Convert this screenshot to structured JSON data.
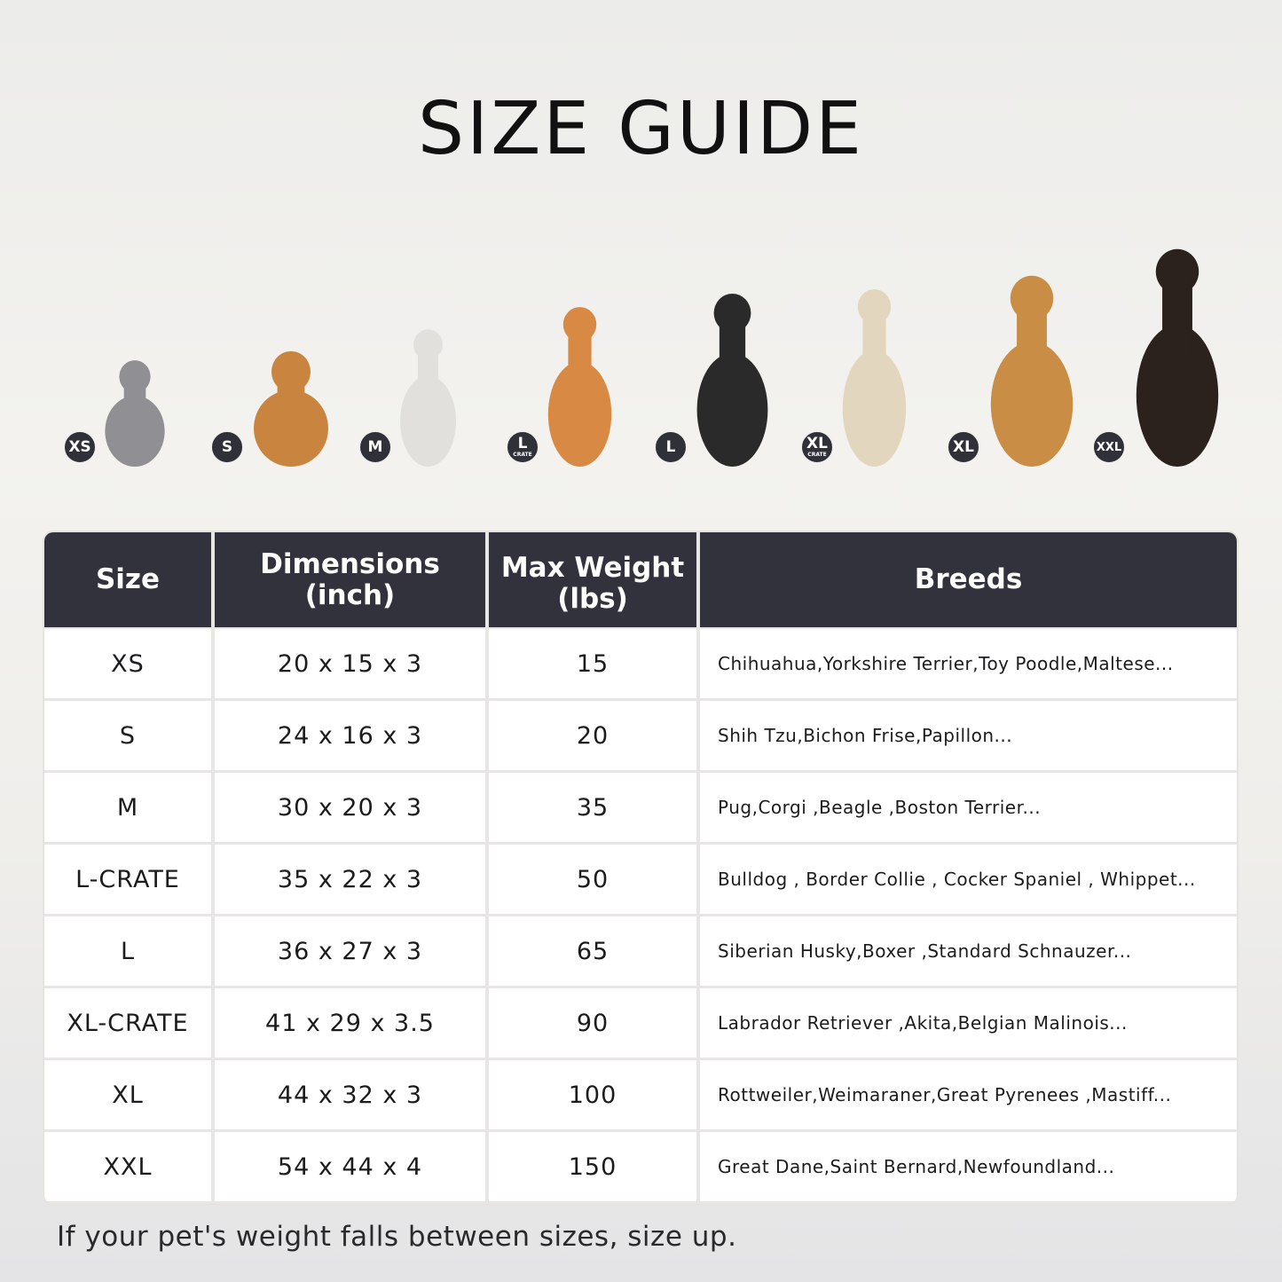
{
  "title": "SIZE GUIDE",
  "pets": [
    {
      "badge": "XS",
      "sub": "",
      "animal": "british-shorthair-cat",
      "color": "#8f8f94"
    },
    {
      "badge": "S",
      "sub": "",
      "animal": "pomeranian",
      "color": "#c9853f"
    },
    {
      "badge": "M",
      "sub": "",
      "animal": "french-bulldog",
      "color": "#e2e0dc"
    },
    {
      "badge": "L",
      "sub": "CRATE",
      "animal": "shiba-inu",
      "color": "#d88a45"
    },
    {
      "badge": "L",
      "sub": "",
      "animal": "border-collie",
      "color": "#2a2a2a"
    },
    {
      "badge": "XL",
      "sub": "CRATE",
      "animal": "labrador-retriever",
      "color": "#e3d6bf"
    },
    {
      "badge": "XL",
      "sub": "",
      "animal": "golden-retriever",
      "color": "#c98d45"
    },
    {
      "badge": "XXL",
      "sub": "",
      "animal": "doberman",
      "color": "#2b211d"
    }
  ],
  "table": {
    "headers": {
      "size": "Size",
      "dimensions": [
        "Dimensions",
        "(inch)"
      ],
      "weight": [
        "Max Weight",
        "(lbs)"
      ],
      "breeds": "Breeds"
    },
    "rows": [
      {
        "size": "XS",
        "dimensions": "20 x 15 x 3",
        "weight": "15",
        "breeds": "Chihuahua,Yorkshire Terrier,Toy Poodle,Maltese..."
      },
      {
        "size": "S",
        "dimensions": "24 x 16 x 3",
        "weight": "20",
        "breeds": "Shih Tzu,Bichon Frise,Papillon..."
      },
      {
        "size": "M",
        "dimensions": "30 x 20 x 3",
        "weight": "35",
        "breeds": "Pug,Corgi ,Beagle ,Boston Terrier..."
      },
      {
        "size": "L-CRATE",
        "dimensions": "35 x 22 x 3",
        "weight": "50",
        "breeds": "Bulldog , Border Collie , Cocker Spaniel , Whippet..."
      },
      {
        "size": "L",
        "dimensions": "36 x 27 x 3",
        "weight": "65",
        "breeds": "Siberian Husky,Boxer ,Standard Schnauzer..."
      },
      {
        "size": "XL-CRATE",
        "dimensions": "41 x 29 x 3.5",
        "weight": "90",
        "breeds": "Labrador Retriever ,Akita,Belgian Malinois..."
      },
      {
        "size": "XL",
        "dimensions": "44 x 32 x 3",
        "weight": "100",
        "breeds": "Rottweiler,Weimaraner,Great Pyrenees ,Mastiff..."
      },
      {
        "size": "XXL",
        "dimensions": "54 x 44 x 4",
        "weight": "150",
        "breeds": "Great Dane,Saint Bernard,Newfoundland..."
      }
    ]
  },
  "note": "If your pet's weight falls between sizes, size up.",
  "colors": {
    "header_bg": "#31323b",
    "badge_bg": "#2f3038"
  }
}
